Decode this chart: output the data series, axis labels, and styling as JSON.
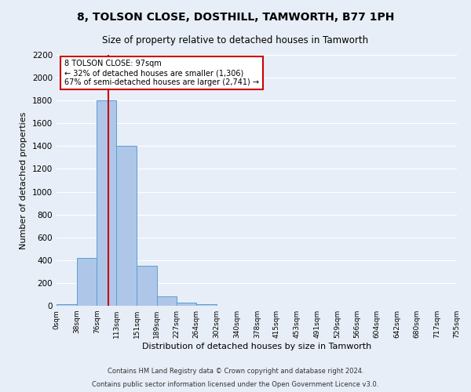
{
  "title1": "8, TOLSON CLOSE, DOSTHILL, TAMWORTH, B77 1PH",
  "title2": "Size of property relative to detached houses in Tamworth",
  "xlabel": "Distribution of detached houses by size in Tamworth",
  "ylabel": "Number of detached properties",
  "footer1": "Contains HM Land Registry data © Crown copyright and database right 2024.",
  "footer2": "Contains public sector information licensed under the Open Government Licence v3.0.",
  "bin_edges": [
    0,
    38,
    76,
    113,
    151,
    189,
    227,
    264,
    302,
    340,
    378,
    415,
    453,
    491,
    529,
    566,
    604,
    642,
    680,
    717,
    755
  ],
  "bin_labels": [
    "0sqm",
    "38sqm",
    "76sqm",
    "113sqm",
    "151sqm",
    "189sqm",
    "227sqm",
    "264sqm",
    "302sqm",
    "340sqm",
    "378sqm",
    "415sqm",
    "453sqm",
    "491sqm",
    "529sqm",
    "566sqm",
    "604sqm",
    "642sqm",
    "680sqm",
    "717sqm",
    "755sqm"
  ],
  "bar_heights": [
    15,
    420,
    1800,
    1400,
    350,
    80,
    30,
    15,
    0,
    0,
    0,
    0,
    0,
    0,
    0,
    0,
    0,
    0,
    0,
    0
  ],
  "bar_color": "#aec6e8",
  "bar_edge_color": "#5a9fd4",
  "vline_x": 97,
  "vline_color": "#cc0000",
  "annotation_text": "8 TOLSON CLOSE: 97sqm\n← 32% of detached houses are smaller (1,306)\n67% of semi-detached houses are larger (2,741) →",
  "annotation_box_color": "#ffffff",
  "annotation_box_edge": "#cc0000",
  "ylim": [
    0,
    2200
  ],
  "background_color": "#e8eef7",
  "plot_background": "#e8eef7",
  "grid_color": "#ffffff",
  "title1_fontsize": 10,
  "title2_fontsize": 8.5,
  "xlabel_fontsize": 8,
  "ylabel_fontsize": 8,
  "footer_fontsize": 6,
  "annotation_fontsize": 7
}
